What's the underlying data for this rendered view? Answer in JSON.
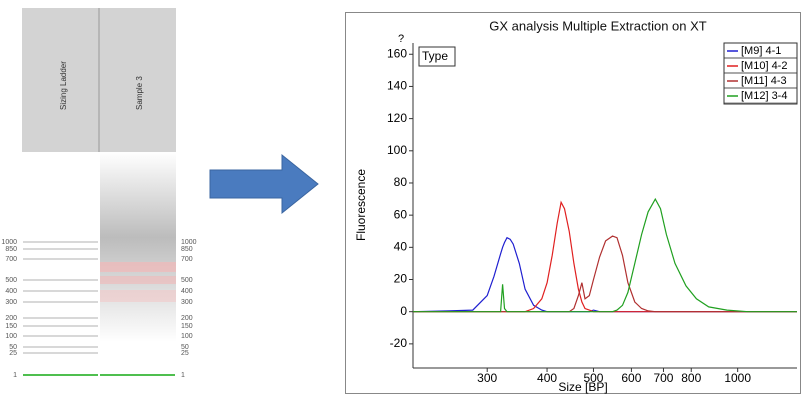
{
  "gel": {
    "lanes": [
      "Sizing Ladder",
      "Sample 3"
    ],
    "ladder_sizes": [
      "1000",
      "850",
      "700",
      "500",
      "400",
      "300",
      "200",
      "150",
      "100",
      "50",
      "25",
      "1"
    ]
  },
  "chart_data": {
    "type": "line",
    "title": "GX analysis Multiple Extraction on XT",
    "x_label": "Size [BP]",
    "y_label": "Fluorescence",
    "annotations": [
      "?",
      "Type"
    ],
    "xscale": "log",
    "xlim": [
      210,
      1330
    ],
    "ylim": [
      -35,
      167
    ],
    "xticks": [
      300,
      400,
      500,
      600,
      700,
      800,
      1000
    ],
    "yticks": [
      -20,
      0,
      20,
      40,
      60,
      80,
      100,
      120,
      140,
      160
    ],
    "legend": "top-right",
    "x": [
      210,
      250,
      280,
      300,
      310,
      320,
      323,
      326,
      330,
      335,
      340,
      350,
      360,
      375,
      390,
      400,
      410,
      420,
      428,
      435,
      445,
      455,
      465,
      473,
      480,
      490,
      500,
      515,
      530,
      548,
      560,
      575,
      590,
      610,
      630,
      650,
      673,
      690,
      710,
      740,
      780,
      820,
      870,
      950,
      1050,
      1200,
      1330
    ],
    "series": [
      {
        "name": "[M9] 4-1",
        "color": "#1f1fd0",
        "values": [
          0,
          0.5,
          1,
          10,
          22,
          36,
          40,
          43,
          46,
          45,
          42,
          30,
          14,
          4,
          1,
          0,
          0,
          0,
          0,
          0,
          0,
          0,
          0,
          0,
          0,
          0,
          1,
          0,
          0,
          0,
          0,
          0,
          0,
          0,
          0,
          0,
          0,
          0,
          0,
          0,
          0,
          0,
          0,
          0,
          0,
          0,
          0
        ]
      },
      {
        "name": "[M10] 4-2",
        "color": "#e02020",
        "values": [
          0,
          0,
          0,
          0,
          0,
          0,
          0,
          0,
          0,
          0,
          0,
          0,
          0,
          2,
          8,
          18,
          35,
          55,
          68,
          64,
          50,
          30,
          14,
          6,
          2,
          1,
          0,
          0,
          0,
          0,
          0,
          0,
          0,
          0,
          0,
          0,
          0,
          0,
          0,
          0,
          0,
          0,
          0,
          0,
          0,
          0,
          0
        ]
      },
      {
        "name": "[M11] 4-3",
        "color": "#b03030",
        "values": [
          0,
          0,
          0,
          0,
          0,
          0,
          0,
          0,
          0,
          0,
          0,
          0,
          0,
          0,
          0,
          0,
          0,
          0,
          0,
          0,
          0,
          2,
          10,
          18,
          8,
          10,
          20,
          34,
          44,
          47,
          46,
          35,
          18,
          6,
          2,
          0.5,
          0,
          0,
          0,
          0,
          0,
          0,
          0,
          0,
          0,
          0,
          0
        ]
      },
      {
        "name": "[M12] 3-4",
        "color": "#20a020",
        "values": [
          0,
          0,
          0,
          0,
          0,
          0,
          17,
          2,
          0,
          0,
          0,
          0,
          0,
          0,
          0,
          0,
          0,
          0,
          0,
          0,
          0,
          0,
          0,
          0,
          0,
          0,
          0,
          0,
          0,
          0,
          1,
          4,
          12,
          30,
          48,
          62,
          70,
          64,
          48,
          30,
          16,
          8,
          3,
          1,
          0,
          0,
          0
        ]
      }
    ]
  }
}
